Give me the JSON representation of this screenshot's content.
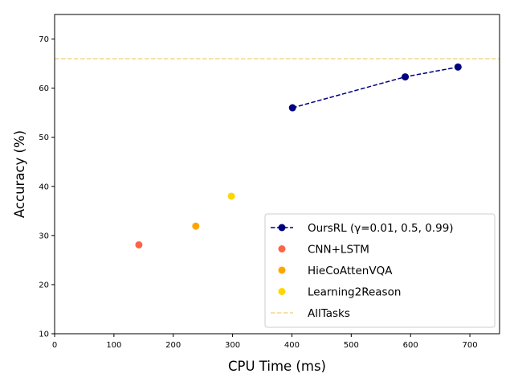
{
  "chart_data": {
    "type": "scatter",
    "xlabel": "CPU Time (ms)",
    "ylabel": "Accuracy (%)",
    "xlim": [
      0,
      750
    ],
    "ylim": [
      10,
      75
    ],
    "xticks": [
      0,
      100,
      200,
      300,
      400,
      500,
      600,
      700
    ],
    "yticks": [
      10,
      20,
      30,
      40,
      50,
      60,
      70
    ],
    "grid": false,
    "legend_position": "bottom-right",
    "series": [
      {
        "name": "OursRL (γ=0.01, 0.5, 0.99)",
        "kind": "line-marker",
        "color": "#000080",
        "line_style": "dashed",
        "x": [
          401,
          591,
          680
        ],
        "y": [
          56,
          62.3,
          64.3
        ]
      },
      {
        "name": "CNN+LSTM",
        "kind": "scatter",
        "color": "#ff6347",
        "x": [
          142
        ],
        "y": [
          28.1
        ]
      },
      {
        "name": "HieCoAttenVQA",
        "kind": "scatter",
        "color": "#ffa500",
        "x": [
          238
        ],
        "y": [
          31.9
        ]
      },
      {
        "name": "Learning2Reason",
        "kind": "scatter",
        "color": "#ffd700",
        "x": [
          298
        ],
        "y": [
          38
        ]
      },
      {
        "name": "AllTasks",
        "kind": "hline",
        "color": "#f0d98a",
        "line_style": "dashed",
        "y": 66
      }
    ]
  }
}
